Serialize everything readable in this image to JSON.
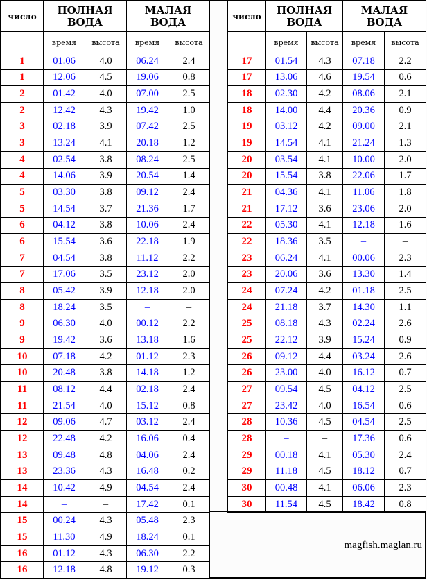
{
  "headers": {
    "day": "число",
    "high_water": "ПОЛНАЯ ВОДА",
    "low_water": "МАЛАЯ ВОДА",
    "time": "время",
    "height": "высота"
  },
  "colors": {
    "day": "#ff0000",
    "time": "#0000ff",
    "height": "#000000"
  },
  "left_rows": [
    [
      "1",
      "01.06",
      "4.0",
      "06.24",
      "2.4"
    ],
    [
      "1",
      "12.06",
      "4.5",
      "19.06",
      "0.8"
    ],
    [
      "2",
      "01.42",
      "4.0",
      "07.00",
      "2.5"
    ],
    [
      "2",
      "12.42",
      "4.3",
      "19.42",
      "1.0"
    ],
    [
      "3",
      "02.18",
      "3.9",
      "07.42",
      "2.5"
    ],
    [
      "3",
      "13.24",
      "4.1",
      "20.18",
      "1.2"
    ],
    [
      "4",
      "02.54",
      "3.8",
      "08.24",
      "2.5"
    ],
    [
      "4",
      "14.06",
      "3.9",
      "20.54",
      "1.4"
    ],
    [
      "5",
      "03.30",
      "3.8",
      "09.12",
      "2.4"
    ],
    [
      "5",
      "14.54",
      "3.7",
      "21.36",
      "1.7"
    ],
    [
      "6",
      "04.12",
      "3.8",
      "10.06",
      "2.4"
    ],
    [
      "6",
      "15.54",
      "3.6",
      "22.18",
      "1.9"
    ],
    [
      "7",
      "04.54",
      "3.8",
      "11.12",
      "2.2"
    ],
    [
      "7",
      "17.06",
      "3.5",
      "23.12",
      "2.0"
    ],
    [
      "8",
      "05.42",
      "3.9",
      "12.18",
      "2.0"
    ],
    [
      "8",
      "18.24",
      "3.5",
      "–",
      "–"
    ],
    [
      "9",
      "06.30",
      "4.0",
      "00.12",
      "2.2"
    ],
    [
      "9",
      "19.42",
      "3.6",
      "13.18",
      "1.6"
    ],
    [
      "10",
      "07.18",
      "4.2",
      "01.12",
      "2.3"
    ],
    [
      "10",
      "20.48",
      "3.8",
      "14.18",
      "1.2"
    ],
    [
      "11",
      "08.12",
      "4.4",
      "02.18",
      "2.4"
    ],
    [
      "11",
      "21.54",
      "4.0",
      "15.12",
      "0.8"
    ],
    [
      "12",
      "09.06",
      "4.7",
      "03.12",
      "2.4"
    ],
    [
      "12",
      "22.48",
      "4.2",
      "16.06",
      "0.4"
    ],
    [
      "13",
      "09.48",
      "4.8",
      "04.06",
      "2.4"
    ],
    [
      "13",
      "23.36",
      "4.3",
      "16.48",
      "0.2"
    ],
    [
      "14",
      "10.42",
      "4.9",
      "04.54",
      "2.4"
    ],
    [
      "14",
      "–",
      "–",
      "17.42",
      "0.1"
    ],
    [
      "15",
      "00.24",
      "4.3",
      "05.48",
      "2.3"
    ],
    [
      "15",
      "11.30",
      "4.9",
      "18.24",
      "0.1"
    ],
    [
      "16",
      "01.12",
      "4.3",
      "06.30",
      "2.2"
    ],
    [
      "16",
      "12.18",
      "4.8",
      "19.12",
      "0.3"
    ]
  ],
  "right_rows": [
    [
      "17",
      "01.54",
      "4.3",
      "07.18",
      "2.2"
    ],
    [
      "17",
      "13.06",
      "4.6",
      "19.54",
      "0.6"
    ],
    [
      "18",
      "02.30",
      "4.2",
      "08.06",
      "2.1"
    ],
    [
      "18",
      "14.00",
      "4.4",
      "20.36",
      "0.9"
    ],
    [
      "19",
      "03.12",
      "4.2",
      "09.00",
      "2.1"
    ],
    [
      "19",
      "14.54",
      "4.1",
      "21.24",
      "1.3"
    ],
    [
      "20",
      "03.54",
      "4.1",
      "10.00",
      "2.0"
    ],
    [
      "20",
      "15.54",
      "3.8",
      "22.06",
      "1.7"
    ],
    [
      "21",
      "04.36",
      "4.1",
      "11.06",
      "1.8"
    ],
    [
      "21",
      "17.12",
      "3.6",
      "23.06",
      "2.0"
    ],
    [
      "22",
      "05.30",
      "4.1",
      "12.18",
      "1.6"
    ],
    [
      "22",
      "18.36",
      "3.5",
      "–",
      "–"
    ],
    [
      "23",
      "06.24",
      "4.1",
      "00.06",
      "2.3"
    ],
    [
      "23",
      "20.06",
      "3.6",
      "13.30",
      "1.4"
    ],
    [
      "24",
      "07.24",
      "4.2",
      "01.18",
      "2.5"
    ],
    [
      "24",
      "21.18",
      "3.7",
      "14.30",
      "1.1"
    ],
    [
      "25",
      "08.18",
      "4.3",
      "02.24",
      "2.6"
    ],
    [
      "25",
      "22.12",
      "3.9",
      "15.24",
      "0.9"
    ],
    [
      "26",
      "09.12",
      "4.4",
      "03.24",
      "2.6"
    ],
    [
      "26",
      "23.00",
      "4.0",
      "16.12",
      "0.7"
    ],
    [
      "27",
      "09.54",
      "4.5",
      "04.12",
      "2.5"
    ],
    [
      "27",
      "23.42",
      "4.0",
      "16.54",
      "0.6"
    ],
    [
      "28",
      "10.36",
      "4.5",
      "04.54",
      "2.5"
    ],
    [
      "28",
      "–",
      "–",
      "17.36",
      "0.6"
    ],
    [
      "29",
      "00.18",
      "4.1",
      "05.30",
      "2.4"
    ],
    [
      "29",
      "11.18",
      "4.5",
      "18.12",
      "0.7"
    ],
    [
      "30",
      "00.48",
      "4.1",
      "06.06",
      "2.3"
    ],
    [
      "30",
      "11.54",
      "4.5",
      "18.42",
      "0.8"
    ]
  ],
  "credit": "magfish.maglan.ru"
}
